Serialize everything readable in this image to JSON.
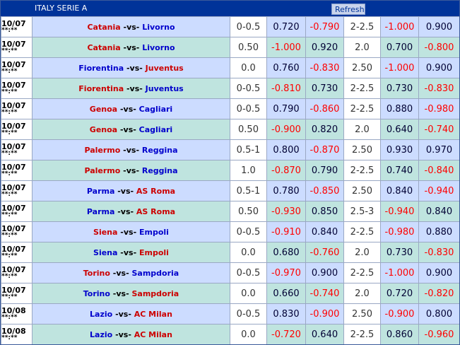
{
  "header": {
    "title": "ITALY SERIE A",
    "refresh_label": "Refresh"
  },
  "rows": [
    {
      "date": "10/07",
      "time": "**:**",
      "home": "Catania",
      "vs": "-vs-",
      "away": "Livorno",
      "hdp": "0-0.5",
      "h_odds": "0.720",
      "a_odds": "-0.790",
      "ou": "2-2.5",
      "over": "-1.000",
      "under": "0.900",
      "style": "blue",
      "fav": "home"
    },
    {
      "date": "10/07",
      "time": "**:**",
      "home": "Catania",
      "vs": "-vs-",
      "away": "Livorno",
      "hdp": "0.50",
      "h_odds": "-1.000",
      "a_odds": "0.920",
      "ou": "2.0",
      "over": "0.700",
      "under": "-0.800",
      "style": "green",
      "fav": "home"
    },
    {
      "date": "10/07",
      "time": "**:**",
      "home": "Fiorentina",
      "vs": "-vs-",
      "away": "Juventus",
      "hdp": "0.0",
      "h_odds": "0.760",
      "a_odds": "-0.830",
      "ou": "2.50",
      "over": "-1.000",
      "under": "0.900",
      "style": "blue",
      "fav": "away"
    },
    {
      "date": "10/07",
      "time": "**:**",
      "home": "Fiorentina",
      "vs": "-vs-",
      "away": "Juventus",
      "hdp": "0-0.5",
      "h_odds": "-0.810",
      "a_odds": "0.730",
      "ou": "2-2.5",
      "over": "0.730",
      "under": "-0.830",
      "style": "green",
      "fav": "home"
    },
    {
      "date": "10/07",
      "time": "**:**",
      "home": "Genoa",
      "vs": "-vs-",
      "away": "Cagliari",
      "hdp": "0-0.5",
      "h_odds": "0.790",
      "a_odds": "-0.860",
      "ou": "2-2.5",
      "over": "0.880",
      "under": "-0.980",
      "style": "blue",
      "fav": "home"
    },
    {
      "date": "10/07",
      "time": "**:**",
      "home": "Genoa",
      "vs": "-vs-",
      "away": "Cagliari",
      "hdp": "0.50",
      "h_odds": "-0.900",
      "a_odds": "0.820",
      "ou": "2.0",
      "over": "0.640",
      "under": "-0.740",
      "style": "green",
      "fav": "home"
    },
    {
      "date": "10/07",
      "time": "**:**",
      "home": "Palermo",
      "vs": "-vs-",
      "away": "Reggina",
      "hdp": "0.5-1",
      "h_odds": "0.800",
      "a_odds": "-0.870",
      "ou": "2.50",
      "over": "0.930",
      "under": "0.970",
      "style": "blue",
      "fav": "home"
    },
    {
      "date": "10/07",
      "time": "**:**",
      "home": "Palermo",
      "vs": "-vs-",
      "away": "Reggina",
      "hdp": "1.0",
      "h_odds": "-0.870",
      "a_odds": "0.790",
      "ou": "2-2.5",
      "over": "0.740",
      "under": "-0.840",
      "style": "green",
      "fav": "home"
    },
    {
      "date": "10/07",
      "time": "**:**",
      "home": "Parma",
      "vs": "-vs-",
      "away": "AS Roma",
      "hdp": "0.5-1",
      "h_odds": "0.780",
      "a_odds": "-0.850",
      "ou": "2.50",
      "over": "0.840",
      "under": "-0.940",
      "style": "blue",
      "fav": "away"
    },
    {
      "date": "10/07",
      "time": "**:**",
      "home": "Parma",
      "vs": "-vs-",
      "away": "AS Roma",
      "hdp": "0.50",
      "h_odds": "-0.930",
      "a_odds": "0.850",
      "ou": "2.5-3",
      "over": "-0.940",
      "under": "0.840",
      "style": "green",
      "fav": "away"
    },
    {
      "date": "10/07",
      "time": "**:**",
      "home": "Siena",
      "vs": "-vs-",
      "away": "Empoli",
      "hdp": "0-0.5",
      "h_odds": "-0.910",
      "a_odds": "0.840",
      "ou": "2-2.5",
      "over": "-0.980",
      "under": "0.880",
      "style": "blue",
      "fav": "home"
    },
    {
      "date": "10/07",
      "time": "**:**",
      "home": "Siena",
      "vs": "-vs-",
      "away": "Empoli",
      "hdp": "0.0",
      "h_odds": "0.680",
      "a_odds": "-0.760",
      "ou": "2.0",
      "over": "0.730",
      "under": "-0.830",
      "style": "green",
      "fav": "away"
    },
    {
      "date": "10/07",
      "time": "**:**",
      "home": "Torino",
      "vs": "-vs-",
      "away": "Sampdoria",
      "hdp": "0-0.5",
      "h_odds": "-0.970",
      "a_odds": "0.900",
      "ou": "2-2.5",
      "over": "-1.000",
      "under": "0.900",
      "style": "blue",
      "fav": "home"
    },
    {
      "date": "10/07",
      "time": "**:**",
      "home": "Torino",
      "vs": "-vs-",
      "away": "Sampdoria",
      "hdp": "0.0",
      "h_odds": "0.660",
      "a_odds": "-0.740",
      "ou": "2.0",
      "over": "0.720",
      "under": "-0.820",
      "style": "green",
      "fav": "away"
    },
    {
      "date": "10/08",
      "time": "**:**",
      "home": "Lazio",
      "vs": "-vs-",
      "away": "AC Milan",
      "hdp": "0-0.5",
      "h_odds": "0.830",
      "a_odds": "-0.900",
      "ou": "2.50",
      "over": "-0.900",
      "under": "0.800",
      "style": "blue",
      "fav": "away"
    },
    {
      "date": "10/08",
      "time": "**:**",
      "home": "Lazio",
      "vs": "-vs-",
      "away": "AC Milan",
      "hdp": "0.0",
      "h_odds": "-0.720",
      "a_odds": "0.640",
      "ou": "2-2.5",
      "over": "0.860",
      "under": "-0.960",
      "style": "green",
      "fav": "away"
    }
  ]
}
